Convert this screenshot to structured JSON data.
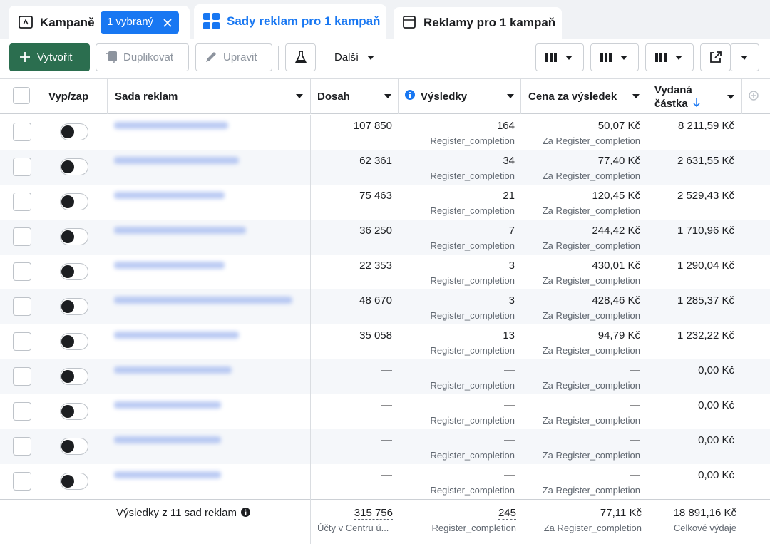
{
  "tabs": [
    {
      "label": "Kampaně",
      "badge": "1 vybraný"
    },
    {
      "label": "Sady reklam pro 1 kampaň"
    },
    {
      "label": "Reklamy pro 1 kampaň"
    }
  ],
  "toolbar": {
    "create": "Vytvořit",
    "duplicate": "Duplikovat",
    "edit": "Upravit",
    "more": "Další"
  },
  "table": {
    "headers": [
      "Vyp/zap",
      "Sada reklam",
      "Dosah",
      "Výsledky",
      "Cena za výsledek",
      "Vydaná částka"
    ],
    "rows": [
      {
        "reach": "107 850",
        "results": "164",
        "result_type": "Register_completion",
        "cost": "50,07 Kč",
        "cost_type": "Za Register_completion",
        "spent": "8 211,59 Kč"
      },
      {
        "reach": "62 361",
        "results": "34",
        "result_type": "Register_completion",
        "cost": "77,40 Kč",
        "cost_type": "Za Register_completion",
        "spent": "2 631,55 Kč"
      },
      {
        "reach": "75 463",
        "results": "21",
        "result_type": "Register_completion",
        "cost": "120,45 Kč",
        "cost_type": "Za Register_completion",
        "spent": "2 529,43 Kč"
      },
      {
        "reach": "36 250",
        "results": "7",
        "result_type": "Register_completion",
        "cost": "244,42 Kč",
        "cost_type": "Za Register_completion",
        "spent": "1 710,96 Kč"
      },
      {
        "reach": "22 353",
        "results": "3",
        "result_type": "Register_completion",
        "cost": "430,01 Kč",
        "cost_type": "Za Register_completion",
        "spent": "1 290,04 Kč"
      },
      {
        "reach": "48 670",
        "results": "3",
        "result_type": "Register_completion",
        "cost": "428,46 Kč",
        "cost_type": "Za Register_completion",
        "spent": "1 285,37 Kč"
      },
      {
        "reach": "35 058",
        "results": "13",
        "result_type": "Register_completion",
        "cost": "94,79 Kč",
        "cost_type": "Za Register_completion",
        "spent": "1 232,22 Kč"
      },
      {
        "reach": "—",
        "results": "—",
        "result_type": "Register_completion",
        "cost": "—",
        "cost_type": "Za Register_completion",
        "spent": "0,00 Kč"
      },
      {
        "reach": "—",
        "results": "—",
        "result_type": "Register_completion",
        "cost": "—",
        "cost_type": "Za Register_completion",
        "spent": "0,00 Kč"
      },
      {
        "reach": "—",
        "results": "—",
        "result_type": "Register_completion",
        "cost": "—",
        "cost_type": "Za Register_completion",
        "spent": "0,00 Kč"
      },
      {
        "reach": "—",
        "results": "—",
        "result_type": "Register_completion",
        "cost": "—",
        "cost_type": "Za Register_completion",
        "spent": "0,00 Kč"
      }
    ],
    "footer": {
      "label": "Výsledky z 11 sad reklam",
      "reach": "315 756",
      "reach_note": "Účty v Centru ú...",
      "results": "245",
      "results_note": "Register_completion",
      "cost": "77,11 Kč",
      "cost_note": "Za Register_completion",
      "spent": "18 891,16 Kč",
      "spent_note": "Celkové výdaje"
    }
  }
}
